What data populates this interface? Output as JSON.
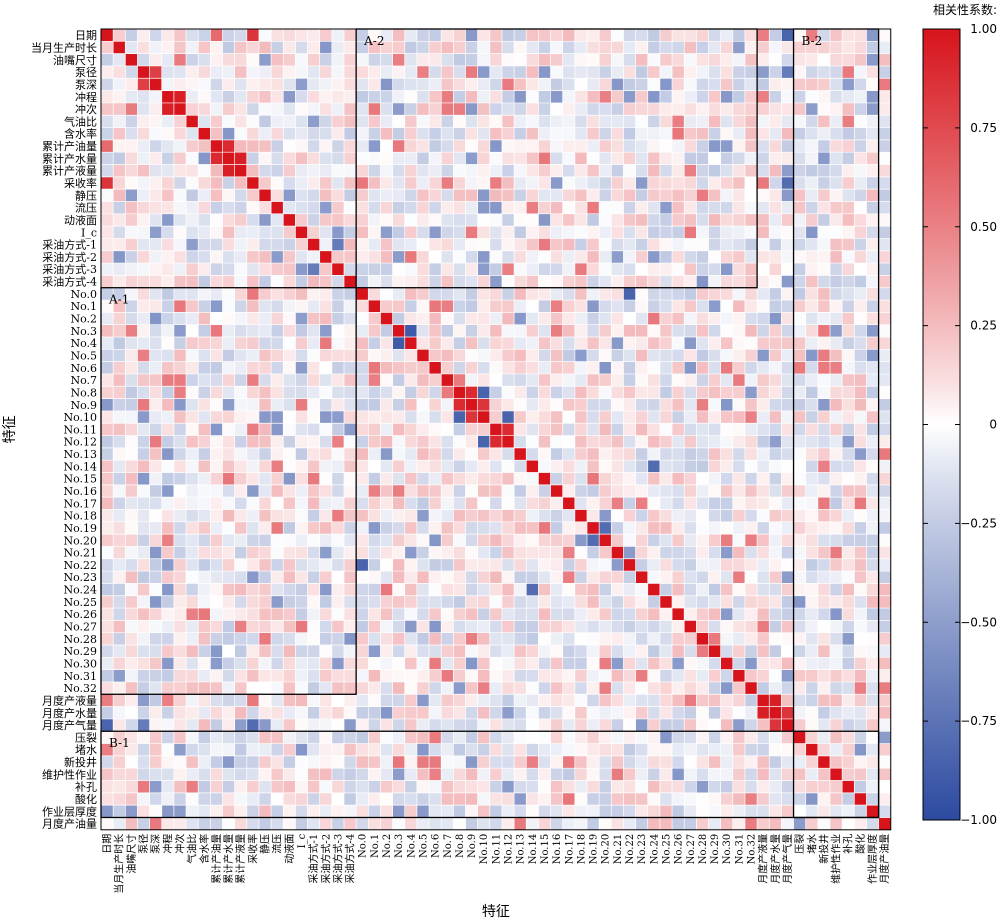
{
  "chart_data": {
    "type": "heatmap",
    "xlabel": "特征",
    "ylabel": "特征",
    "colorbar": {
      "title": "相关性系数:",
      "range": [
        -1.0,
        1.0
      ],
      "ticks": [
        "1.00",
        "0.75",
        "0.50",
        "0.25",
        "0",
        "−0.25",
        "−0.50",
        "−0.75",
        "−1.00"
      ],
      "colors": {
        "negative": "#2c4aa0",
        "zero": "#ffffff",
        "positive": "#d7141c"
      }
    },
    "features": [
      "日期",
      "当月生产时长",
      "油嘴尺寸",
      "泵径",
      "泵深",
      "冲程",
      "冲次",
      "气油比",
      "含水率",
      "累计产油量",
      "累计产水量",
      "累计产液量",
      "采收率",
      "静压",
      "流压",
      "动液面",
      "I_c",
      "采油方式-1",
      "采油方式-2",
      "采油方式-3",
      "采油方式-4",
      "No.0",
      "No.1",
      "No.2",
      "No.3",
      "No.4",
      "No.5",
      "No.6",
      "No.7",
      "No.8",
      "No.9",
      "No.10",
      "No.11",
      "No.12",
      "No.13",
      "No.14",
      "No.15",
      "No.16",
      "No.17",
      "No.18",
      "No.19",
      "No.20",
      "No.21",
      "No.22",
      "No.23",
      "No.24",
      "No.25",
      "No.26",
      "No.27",
      "No.28",
      "No.29",
      "No.30",
      "No.31",
      "No.32",
      "月度产液量",
      "月度产水量",
      "月度产气量",
      "压裂",
      "堵水",
      "新投井",
      "维护性作业",
      "补孔",
      "酸化",
      "作业层厚度",
      "月度产油量"
    ],
    "blocks": [
      {
        "label": "A-1",
        "rows": [
          21,
          53
        ],
        "cols": [
          0,
          20
        ]
      },
      {
        "label": "A-2",
        "rows": [
          0,
          20
        ],
        "cols": [
          21,
          53
        ]
      },
      {
        "label": "B-1",
        "rows": [
          57,
          63
        ],
        "cols": [
          0,
          63
        ]
      },
      {
        "label": "B-2",
        "rows": [
          0,
          63
        ],
        "cols": [
          57,
          63
        ]
      }
    ],
    "notable_values": {
      "diagonal": 1.0,
      "strong_positive": [
        [
          "冲程",
          "冲次",
          0.95
        ],
        [
          "泵径",
          "泵深",
          0.8
        ],
        [
          "累计产油量",
          "累计产水量",
          0.9
        ],
        [
          "累计产水量",
          "累计产液量",
          0.95
        ],
        [
          "No.8",
          "No.9",
          0.9
        ],
        [
          "No.9",
          "No.10",
          0.85
        ],
        [
          "No.11",
          "No.12",
          0.9
        ],
        [
          "月度产液量",
          "月度产水量",
          0.95
        ],
        [
          "月度产水量",
          "月度产气量",
          0.85
        ],
        [
          "日期",
          "采收率",
          0.85
        ],
        [
          "日期",
          "累计产油量",
          0.6
        ]
      ],
      "strong_negative": [
        [
          "日期",
          "月度产气量",
          -0.85
        ],
        [
          "采收率",
          "月度产气量",
          -0.8
        ],
        [
          "No.3",
          "No.4",
          -0.9
        ],
        [
          "No.0",
          "No.22",
          -0.85
        ],
        [
          "No.10",
          "No.8",
          -0.85
        ],
        [
          "No.10",
          "No.12",
          -0.85
        ],
        [
          "No.14",
          "No.24",
          -0.8
        ],
        [
          "No.19",
          "No.20",
          -0.8
        ],
        [
          "泵径",
          "月度产气量",
          -0.7
        ],
        [
          "采油方式-1",
          "采油方式-3",
          -0.7
        ]
      ]
    }
  }
}
